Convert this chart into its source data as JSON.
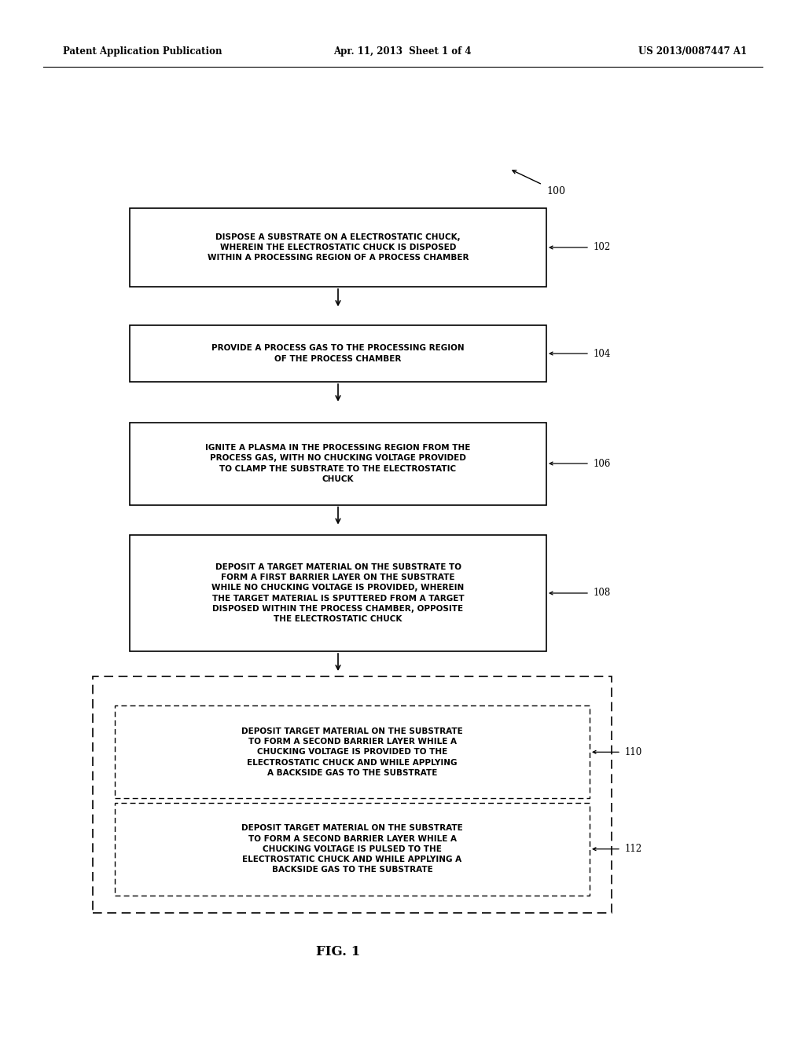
{
  "bg_color": "#ffffff",
  "header_left": "Patent Application Publication",
  "header_center": "Apr. 11, 2013  Sheet 1 of 4",
  "header_right": "US 2013/0087447 A1",
  "figure_label": "FIG. 1",
  "flow_label": "100",
  "boxes_solid": [
    {
      "id": "102",
      "label": "DISPOSE A SUBSTRATE ON A ELECTROSTATIC CHUCK,\nWHEREIN THE ELECTROSTATIC CHUCK IS DISPOSED\nWITHIN A PROCESSING REGION OF A PROCESS CHAMBER",
      "ref": "102"
    },
    {
      "id": "104",
      "label": "PROVIDE A PROCESS GAS TO THE PROCESSING REGION\nOF THE PROCESS CHAMBER",
      "ref": "104"
    },
    {
      "id": "106",
      "label": "IGNITE A PLASMA IN THE PROCESSING REGION FROM THE\nPROCESS GAS, WITH NO CHUCKING VOLTAGE PROVIDED\nTO CLAMP THE SUBSTRATE TO THE ELECTROSTATIC\nCHUCK",
      "ref": "106"
    },
    {
      "id": "108",
      "label": "DEPOSIT A TARGET MATERIAL ON THE SUBSTRATE TO\nFORM A FIRST BARRIER LAYER ON THE SUBSTRATE\nWHILE NO CHUCKING VOLTAGE IS PROVIDED, WHEREIN\nTHE TARGET MATERIAL IS SPUTTERED FROM A TARGET\nDISPOSED WITHIN THE PROCESS CHAMBER, OPPOSITE\nTHE ELECTROSTATIC CHUCK",
      "ref": "108"
    }
  ],
  "outer_dashed_box": {
    "inner_boxes": [
      {
        "id": "110",
        "label": "DEPOSIT TARGET MATERIAL ON THE SUBSTRATE\nTO FORM A SECOND BARRIER LAYER WHILE A\nCHUCKING VOLTAGE IS PROVIDED TO THE\nELECTROSTATIC CHUCK AND WHILE APPLYING\nA BACKSIDE GAS TO THE SUBSTRATE",
        "ref": "110"
      },
      {
        "id": "112",
        "label": "DEPOSIT TARGET MATERIAL ON THE SUBSTRATE\nTO FORM A SECOND BARRIER LAYER WHILE A\nCHUCKING VOLTAGE IS PULSED TO THE\nELECTROSTATIC CHUCK AND WHILE APPLYING A\nBACKSIDE GAS TO THE SUBSTRATE",
        "ref": "112"
      }
    ]
  },
  "text_color": "#000000",
  "font_size_box": 7.5,
  "font_size_header": 8.5,
  "font_size_ref": 8.5,
  "font_size_fig": 12,
  "font_size_100": 9
}
